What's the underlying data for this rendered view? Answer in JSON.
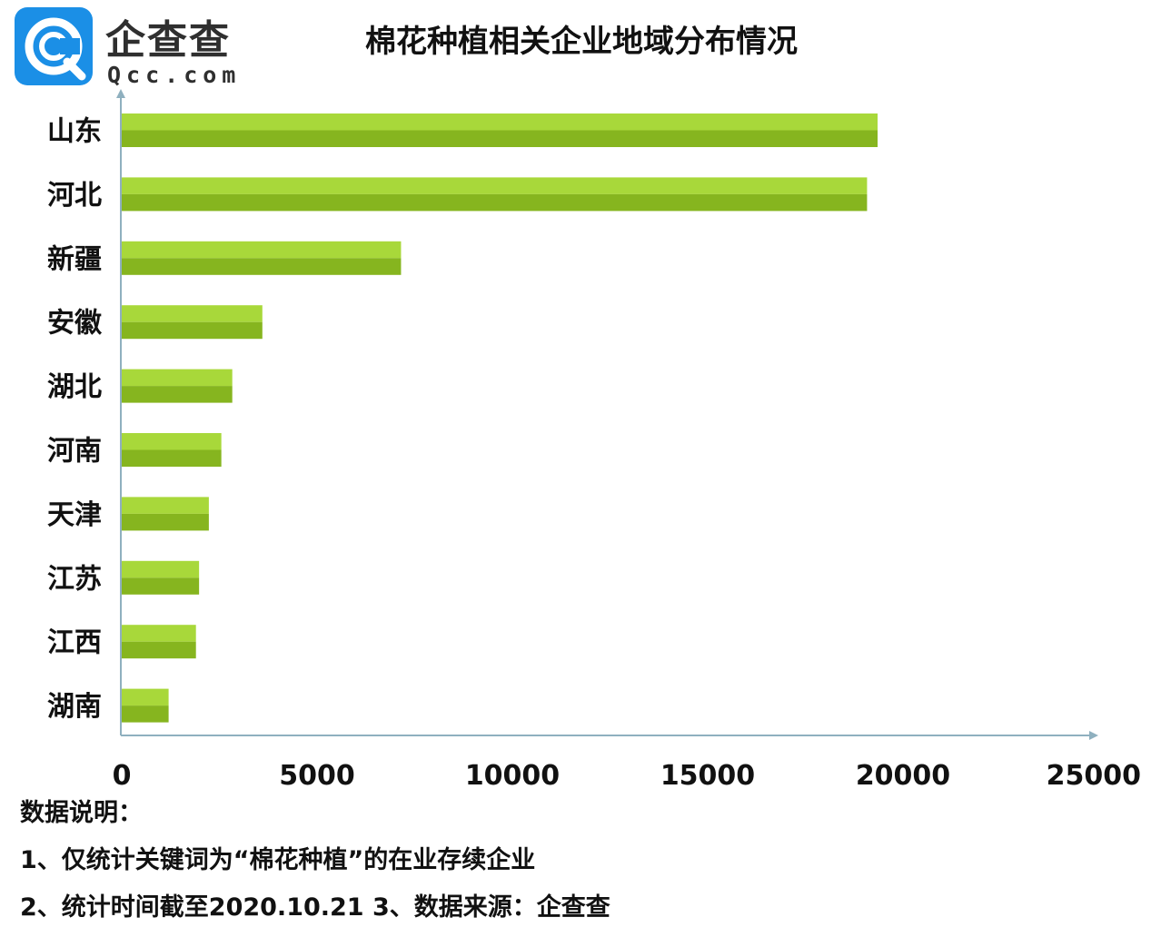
{
  "logo": {
    "name_cn": "企查查",
    "name_en": "Qcc.com",
    "icon": "qcc-logo-icon",
    "brand_color": "#1b8fe6"
  },
  "bar_colors": {
    "light": "#a8d83a",
    "dark": "#86b51f",
    "axis": "#8fb0bf"
  },
  "chart_data": {
    "type": "bar",
    "orientation": "horizontal",
    "title": "棉花种植相关企业地域分布情况",
    "categories": [
      "山东",
      "河北",
      "新疆",
      "安徽",
      "湖北",
      "河南",
      "天津",
      "江苏",
      "江西",
      "湖南"
    ],
    "values": [
      19350,
      19080,
      7150,
      3600,
      2830,
      2550,
      2230,
      1980,
      1900,
      1200
    ],
    "xlim": [
      0,
      25000
    ],
    "xticks": [
      "0",
      "5000",
      "10000",
      "15000",
      "20000",
      "25000"
    ],
    "xlabel": "",
    "ylabel": "",
    "grid": false
  },
  "notes": {
    "heading": "数据说明：",
    "line1": "1、仅统计关键词为“棉花种植”的在业存续企业",
    "line2": "2、统计时间截至2020.10.21   3、数据来源：企查查"
  }
}
